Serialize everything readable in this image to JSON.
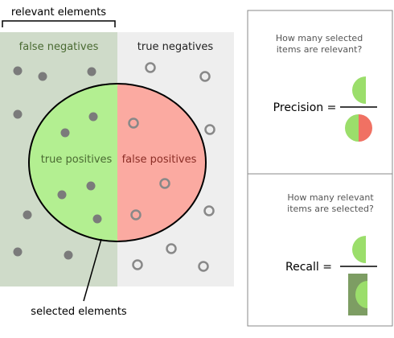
{
  "labels": {
    "relevant_elements": "relevant elements",
    "false_negatives": "false negatives",
    "true_negatives": "true negatives",
    "true_positives": "true positives",
    "false_positives": "false positives",
    "selected_elements": "selected elements"
  },
  "precision": {
    "question_line1": "How many selected",
    "question_line2": "items are relevant?",
    "label": "Precision ="
  },
  "recall": {
    "question_line1": "How many relevant",
    "question_line2": "items are selected?",
    "label": "Recall ="
  },
  "colors": {
    "relevant_bg": "#cfdbc9",
    "nonrelevant_bg": "#eeeeee",
    "true_positive": "#b3ef91",
    "false_positive": "#fbaaa1",
    "filled_dot": "#7b7b7b",
    "hollow_dot": "#888888",
    "text_dark_green": "#4a6a32",
    "text_dark_red": "#8b2d26",
    "icon_green": "#9bde6b",
    "icon_red": "#f07163",
    "icon_dark_green": "#7d9d63"
  }
}
